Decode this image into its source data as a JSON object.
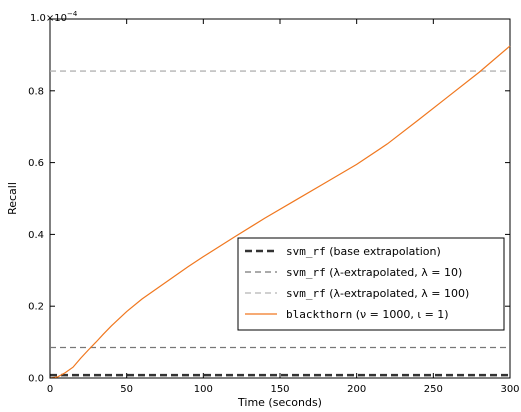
{
  "chart_data": {
    "type": "line",
    "title": "",
    "xlabel": "Time (seconds)",
    "ylabel": "Recall",
    "exponent_label_base": "1.0×10",
    "exponent_label_power": "−4",
    "xlim": [
      0,
      300
    ],
    "ylim": [
      0,
      0.0001
    ],
    "y_scale_factor": 0.0001,
    "x_ticks": [
      0,
      50,
      100,
      150,
      200,
      250,
      300
    ],
    "x_tick_labels": [
      "0",
      "50",
      "100",
      "150",
      "200",
      "250",
      "300"
    ],
    "y_ticks": [
      0,
      2e-05,
      4e-05,
      6e-05,
      8e-05
    ],
    "y_tick_labels": [
      "0.0",
      "0.2",
      "0.4",
      "0.6",
      "0.8"
    ],
    "grid": false,
    "legend_position": "lower-right",
    "series": [
      {
        "name_mono": "svm_rf",
        "name_rest": " (base extrapolation)",
        "kind": "hline",
        "y": 8e-07,
        "color": "#333333",
        "style": "heavy-dash"
      },
      {
        "name_mono": "svm_rf",
        "name_rest": " (λ-extrapolated, λ = 10)",
        "kind": "hline",
        "y": 8.5e-06,
        "color": "#777777",
        "style": "dash"
      },
      {
        "name_mono": "svm_rf",
        "name_rest": " (λ-extrapolated, λ = 100)",
        "kind": "hline",
        "y": 8.55e-05,
        "color": "#b3b3b3",
        "style": "dash"
      },
      {
        "name_mono": "blackthorn",
        "name_rest": " (ν = 1000, ι = 1)",
        "kind": "line",
        "color": "#f07820",
        "style": "solid",
        "x": [
          0,
          5,
          10,
          15,
          20,
          25,
          30,
          35,
          40,
          50,
          60,
          70,
          80,
          90,
          100,
          120,
          140,
          160,
          180,
          200,
          220,
          240,
          260,
          280,
          300
        ],
        "y": [
          0,
          3e-07,
          1.5e-06,
          3e-06,
          5.5e-06,
          7.8e-06,
          1e-05,
          1.23e-05,
          1.45e-05,
          1.85e-05,
          2.2e-05,
          2.5e-05,
          2.8e-05,
          3.1e-05,
          3.38e-05,
          3.92e-05,
          4.45e-05,
          4.95e-05,
          5.45e-05,
          5.95e-05,
          6.52e-05,
          7.18e-05,
          7.85e-05,
          8.52e-05,
          9.25e-05
        ]
      }
    ]
  }
}
